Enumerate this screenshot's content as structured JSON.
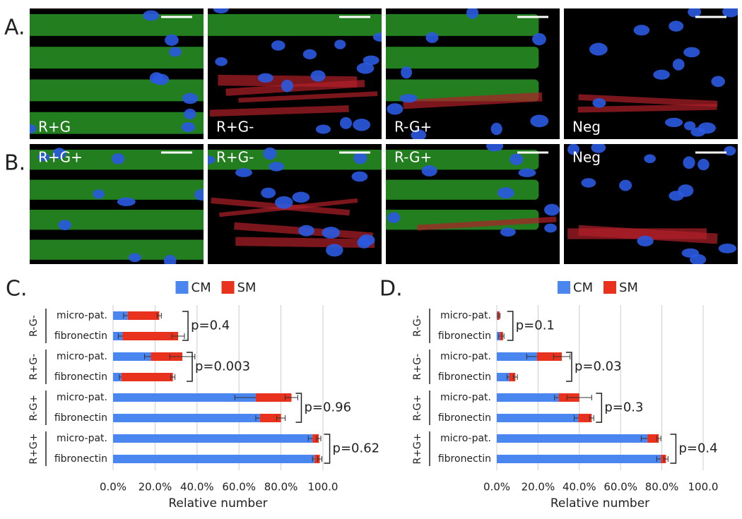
{
  "images": {
    "rows": [
      {
        "label": "A.",
        "panels": [
          "R+G",
          "R+G-",
          "R-G+",
          "Neg"
        ]
      },
      {
        "label": "B.",
        "panels": [
          "R+G+",
          "R+G-",
          "R-G+",
          "Neg"
        ]
      }
    ]
  },
  "chart_data": [
    {
      "type": "stacked-barh",
      "panel_label": "C.",
      "xlabel": "Relative number",
      "categories": [
        "micro-pat.",
        "fibronectin",
        "micro-pat.",
        "fibronectin",
        "micro-pat.",
        "fibronectin",
        "micro-pat.",
        "fibronectin"
      ],
      "groups": [
        {
          "label": "R-G-",
          "annotation": "p=0.4"
        },
        {
          "label": "R+G-",
          "annotation": "p=0.003"
        },
        {
          "label": "R-G+",
          "annotation": "p=0.96"
        },
        {
          "label": "R+G+",
          "annotation": "p=0.62"
        }
      ],
      "series": [
        {
          "name": "CM",
          "color": "#4a86f0",
          "values": [
            7,
            4.5,
            18,
            4,
            68,
            70,
            95,
            96
          ],
          "errors": [
            2,
            2,
            3,
            1,
            10,
            2,
            2,
            1
          ]
        },
        {
          "name": "SM",
          "color": "#e8321e",
          "values": [
            15,
            26.5,
            15,
            24.5,
            17,
            10,
            3,
            2.5
          ],
          "errors": [
            1,
            3,
            6,
            1,
            3,
            2,
            1,
            1
          ]
        }
      ],
      "xlim": [
        0,
        100
      ],
      "xticks": [
        {
          "value": 0,
          "label": "0.0%"
        },
        {
          "value": 20,
          "label": "20.0%"
        },
        {
          "value": 40,
          "label": "40.0%"
        },
        {
          "value": 60,
          "label": "60.0%"
        },
        {
          "value": 80,
          "label": "80.0%"
        },
        {
          "value": 100,
          "label": "100.0"
        }
      ],
      "grid": true
    },
    {
      "type": "stacked-barh",
      "panel_label": "D.",
      "xlabel": "Relative number",
      "categories": [
        "micro-pat.",
        "fibronectin",
        "micro-pat.",
        "fibronectin",
        "micro-pat.",
        "fibronectin",
        "micro-pat.",
        "fibronectin"
      ],
      "groups": [
        {
          "label": "R-G-",
          "annotation": "p=0.1"
        },
        {
          "label": "R+G-",
          "annotation": "p=0.03"
        },
        {
          "label": "R-G+",
          "annotation": "p=0.3"
        },
        {
          "label": "R+G+",
          "annotation": "p=0.4"
        }
      ],
      "series": [
        {
          "name": "CM",
          "color": "#4a86f0",
          "values": [
            0.3,
            1.5,
            19.5,
            6,
            30,
            39.5,
            73,
            79.5
          ],
          "errors": [
            0,
            0.5,
            5,
            1,
            2,
            2,
            3,
            2
          ]
        },
        {
          "name": "SM",
          "color": "#e8321e",
          "values": [
            1,
            1.5,
            12,
            3,
            10,
            6.5,
            5.5,
            2.5
          ],
          "errors": [
            0.3,
            0.5,
            4,
            1,
            6,
            1,
            1,
            1
          ]
        }
      ],
      "xlim": [
        0,
        100
      ],
      "xticks": [
        {
          "value": 0,
          "label": "0.0%"
        },
        {
          "value": 20,
          "label": "20.0%"
        },
        {
          "value": 40,
          "label": "40.0%"
        },
        {
          "value": 60,
          "label": "60.0%"
        },
        {
          "value": 80,
          "label": "80.0%"
        },
        {
          "value": 100,
          "label": "100.0"
        }
      ],
      "grid": true
    }
  ]
}
